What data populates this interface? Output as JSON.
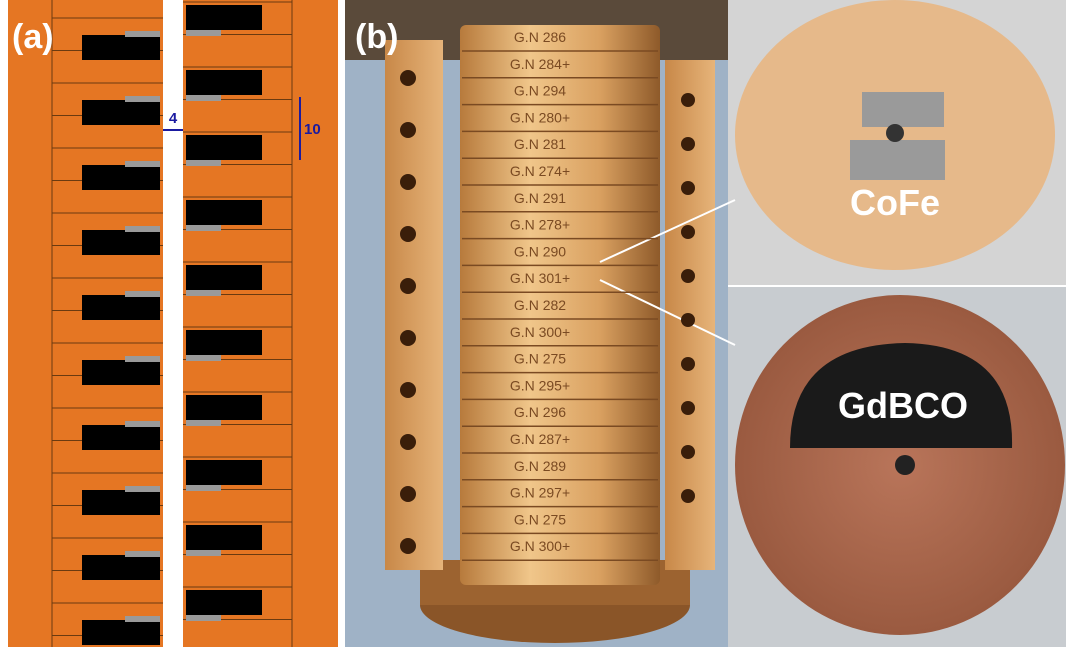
{
  "panels": {
    "a": {
      "label": "(a)",
      "gap_dimension": "4",
      "pitch_dimension": "10"
    },
    "b": {
      "label": "(b)",
      "disk_labels": [
        "G.N 286",
        "G.N 284+",
        "G.N 294",
        "G.N 280+",
        "G.N 281",
        "G.N 274+",
        "G.N 291",
        "G.N 278+",
        "G.N 290",
        "G.N 301+",
        "G.N 282",
        "G.N 300+",
        "G.N 275",
        "G.N 295+",
        "G.N 296",
        "G.N 287+",
        "G.N 289",
        "G.N 297+",
        "G.N 275",
        "G.N 300+"
      ],
      "top_disk_label": "CoFe",
      "bottom_disk_label": "GdBCO"
    }
  }
}
